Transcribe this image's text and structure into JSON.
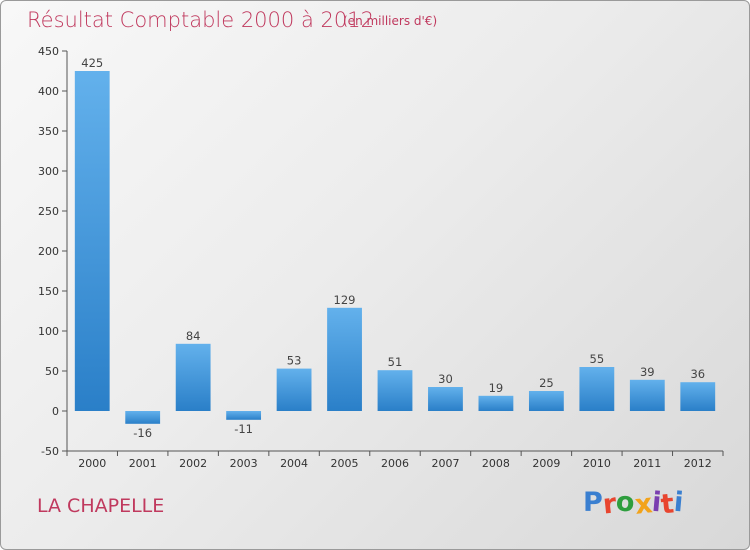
{
  "header": {
    "title": "Résultat Comptable 2000 à 2012",
    "subtitle": "(en milliers d'€)"
  },
  "footer": {
    "commune": "LA CHAPELLE",
    "logo": {
      "letters": [
        "P",
        "r",
        "o",
        "x",
        "i",
        "t",
        "i"
      ],
      "colors": [
        "#3a7fd0",
        "#e8452f",
        "#2e9e3e",
        "#f2a31b",
        "#7a3fb0",
        "#e8452f",
        "#3a7fd0"
      ]
    }
  },
  "colors": {
    "bar_top": "#63b1ec",
    "bar_bottom": "#2a7fc8",
    "text_accent": "#c0395e"
  },
  "chart_data": {
    "type": "bar",
    "categories": [
      "2000",
      "2001",
      "2002",
      "2003",
      "2004",
      "2005",
      "2006",
      "2007",
      "2008",
      "2009",
      "2010",
      "2011",
      "2012"
    ],
    "values": [
      425,
      -16,
      84,
      -11,
      53,
      129,
      51,
      30,
      19,
      25,
      55,
      39,
      36
    ],
    "value_labels": [
      "425",
      "-16",
      "84",
      "-11",
      "53",
      "129",
      "51",
      "30",
      "19",
      "25",
      "55",
      "39",
      "36"
    ],
    "yticks": [
      "-50",
      "0",
      "50",
      "100",
      "150",
      "200",
      "250",
      "300",
      "350",
      "400",
      "450"
    ],
    "ylim": [
      -50,
      450
    ],
    "grid": false,
    "xlabel": "",
    "ylabel": ""
  }
}
